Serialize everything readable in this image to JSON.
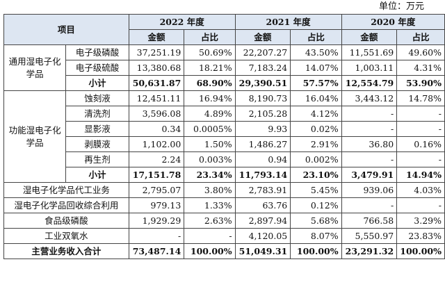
{
  "unit_label": "单位：万元",
  "header": {
    "item": "项目",
    "years": [
      "2022 年度",
      "2021 年度",
      "2020 年度"
    ],
    "amount": "金额",
    "share": "占比"
  },
  "general": {
    "category": "通用湿电子化学品",
    "rows": [
      {
        "name": "电子级磷酸",
        "v": [
          "37,251.19",
          "50.69%",
          "22,207.27",
          "43.50%",
          "11,551.69",
          "49.60%"
        ]
      },
      {
        "name": "电子级硫酸",
        "v": [
          "13,380.68",
          "18.21%",
          "7,183.24",
          "14.07%",
          "1,003.11",
          "4.31%"
        ]
      }
    ],
    "subtotal": {
      "name": "小计",
      "v": [
        "50,631.87",
        "68.90%",
        "29,390.51",
        "57.57%",
        "12,554.79",
        "53.90%"
      ]
    }
  },
  "functional": {
    "category": "功能湿电子化学品",
    "rows": [
      {
        "name": "蚀刻液",
        "v": [
          "12,451.11",
          "16.94%",
          "8,190.73",
          "16.04%",
          "3,443.12",
          "14.78%"
        ]
      },
      {
        "name": "清洗剂",
        "v": [
          "3,596.08",
          "4.89%",
          "2,105.28",
          "4.12%",
          "-",
          "-"
        ]
      },
      {
        "name": "显影液",
        "v": [
          "0.34",
          "0.0005%",
          "9.93",
          "0.02%",
          "-",
          "-"
        ]
      },
      {
        "name": "剥膜液",
        "v": [
          "1,102.00",
          "1.50%",
          "1,486.27",
          "2.91%",
          "36.80",
          "0.16%"
        ]
      },
      {
        "name": "再生剂",
        "v": [
          "2.24",
          "0.003%",
          "0.94",
          "0.002%",
          "-",
          "-"
        ]
      }
    ],
    "subtotal": {
      "name": "小计",
      "v": [
        "17,151.78",
        "23.34%",
        "11,793.14",
        "23.10%",
        "3,479.91",
        "14.94%"
      ]
    }
  },
  "others": [
    {
      "name": "湿电子化学品代工业务",
      "v": [
        "2,795.07",
        "3.80%",
        "2,783.91",
        "5.45%",
        "939.06",
        "4.03%"
      ]
    },
    {
      "name": "湿电子化学品回收综合利用",
      "v": [
        "979.13",
        "1.33%",
        "63.76",
        "0.12%",
        "-",
        "-"
      ]
    },
    {
      "name": "食品级磷酸",
      "v": [
        "1,929.29",
        "2.63%",
        "2,897.94",
        "5.68%",
        "766.58",
        "3.29%"
      ]
    },
    {
      "name": "工业双氧水",
      "v": [
        "-",
        "-",
        "4,120.05",
        "8.07%",
        "5,550.97",
        "23.83%"
      ]
    }
  ],
  "total": {
    "name": "主营业务收入合计",
    "v": [
      "73,487.14",
      "100.00%",
      "51,049.31",
      "100.00%",
      "23,291.32",
      "100.00%"
    ]
  }
}
